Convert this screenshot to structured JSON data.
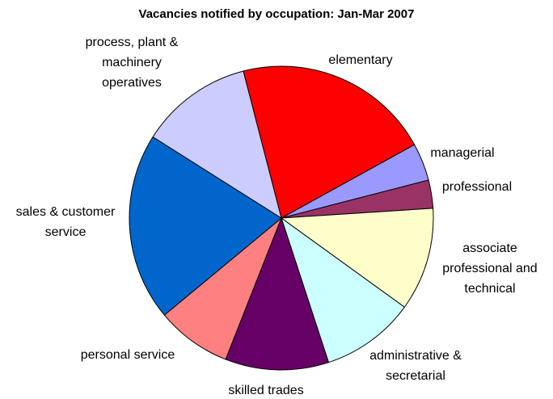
{
  "chart_data": {
    "type": "pie",
    "title": "Vacancies notified by occupation: Jan-Mar 2007",
    "categories": [
      "elementary",
      "managerial",
      "professional",
      "associate professional and technical",
      "administrative & secretarial",
      "skilled trades",
      "personal service",
      "sales & customer service",
      "process, plant & machinery operatives"
    ],
    "values": [
      21,
      4,
      3,
      11,
      10,
      11,
      8,
      20,
      12
    ],
    "colors": [
      "#FF0000",
      "#9999FF",
      "#993366",
      "#FFFFCC",
      "#CCFFFF",
      "#660066",
      "#FF8080",
      "#0066CC",
      "#CCCCFF"
    ]
  }
}
